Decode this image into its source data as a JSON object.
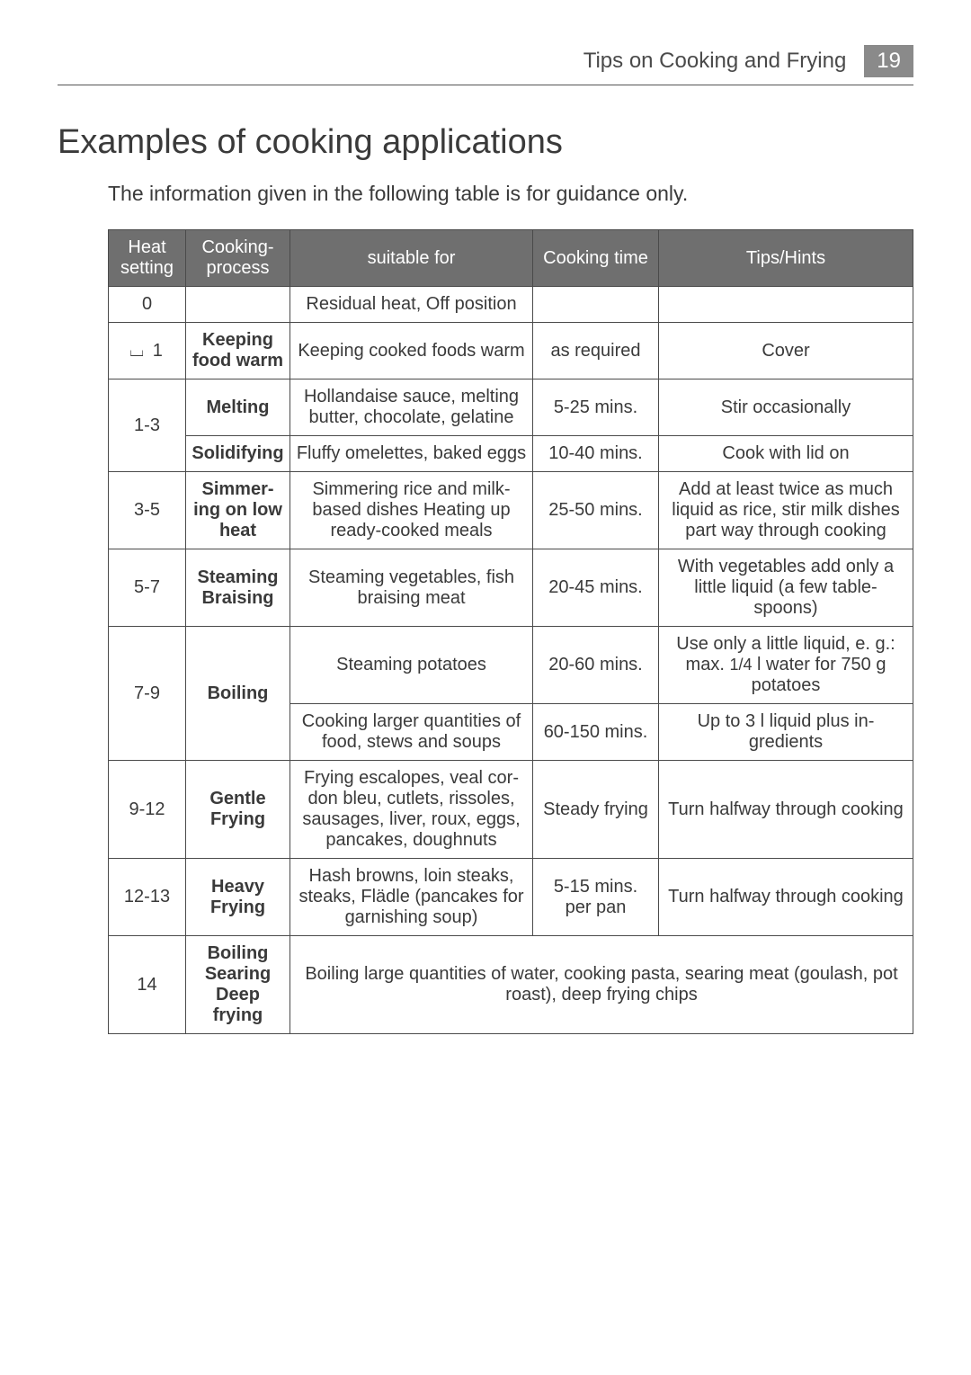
{
  "page": {
    "section_title": "Tips on Cooking and Frying",
    "page_number": "19",
    "heading": "Examples of cooking applications",
    "intro": "The information given in the following table is for guidance only."
  },
  "columns": {
    "heat": "Heat setting",
    "proc": "Cooking-process",
    "suit": "suitable for",
    "time": "Cooking time",
    "tips": "Tips/Hints"
  },
  "r0": {
    "heat": "0",
    "proc": "",
    "suit": "Residual heat, Off position",
    "time": "",
    "tips": ""
  },
  "r1": {
    "heat": "⌴ 1",
    "proc": "Keeping food warm",
    "suit": "Keeping cooked foods warm",
    "time": "as required",
    "tips": "Cover"
  },
  "r2a": {
    "heat": "1-3",
    "proc": "Melting",
    "suit": "Hollandaise sauce, melting butter, chocolate, gelatine",
    "time": "5-25 mins.",
    "tips": "Stir occasionally"
  },
  "r2b": {
    "proc": "Solidifying",
    "suit": "Fluffy omelettes, baked eggs",
    "time": "10-40 mins.",
    "tips": "Cook with lid on"
  },
  "r3": {
    "heat": "3-5",
    "proc": "Simmer-ing on low heat",
    "suit": "Simmering rice and milk-based dishes Heating up ready-cooked meals",
    "time": "25-50 mins.",
    "tips": "Add at least twice as much liquid as rice, stir milk dishes part way through cooking"
  },
  "r4": {
    "heat": "5-7",
    "proc": "Steaming Braising",
    "suit": "Steaming vegetables, fish braising meat",
    "time": "20-45 mins.",
    "tips": "With vegetables add only a little liquid (a few table-spoons)"
  },
  "r5a": {
    "heat": "7-9",
    "proc": "Boiling",
    "suit": "Steaming potatoes",
    "time": "20-60 mins.",
    "tips_pre": "Use only a little liquid, e. g.: max. ",
    "tips_frac": "1/4",
    "tips_post": " l water for 750 g potatoes"
  },
  "r5b": {
    "suit": "Cooking larger quantities of food, stews and soups",
    "time": "60-150 mins.",
    "tips": "Up to 3 l liquid plus in-gredients"
  },
  "r6": {
    "heat": "9-12",
    "proc": "Gentle Frying",
    "suit": "Frying escalopes, veal cor-don bleu, cutlets, rissoles, sausages, liver, roux, eggs, pancakes, doughnuts",
    "time": "Steady frying",
    "tips": "Turn halfway through cooking"
  },
  "r7": {
    "heat": "12-13",
    "proc": "Heavy Frying",
    "suit": "Hash browns, loin steaks, steaks, Flädle (pancakes for garnishing soup)",
    "time": "5-15 mins. per pan",
    "tips": "Turn halfway through cooking"
  },
  "r8": {
    "heat": "14",
    "proc": "Boiling Searing Deep frying",
    "suit": "Boiling large quantities of water, cooking pasta, searing meat (goulash, pot roast), deep frying chips"
  }
}
